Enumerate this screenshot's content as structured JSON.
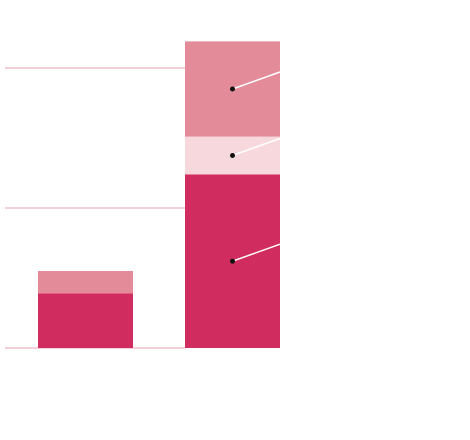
{
  "chart_data": {
    "type": "stacked-bar",
    "categories": [
      null,
      null
    ],
    "series": [
      {
        "color": "#d12c5f",
        "values": [
          0.39,
          1.24
        ]
      },
      {
        "color": "#f7d9dd",
        "values": [
          0,
          0.27
        ]
      },
      {
        "color": "#e38b99",
        "values": [
          0.16,
          0.68
        ]
      }
    ],
    "ylim": [
      0,
      2.2
    ],
    "yticks": [
      0,
      1,
      2
    ],
    "grid": true
  }
}
